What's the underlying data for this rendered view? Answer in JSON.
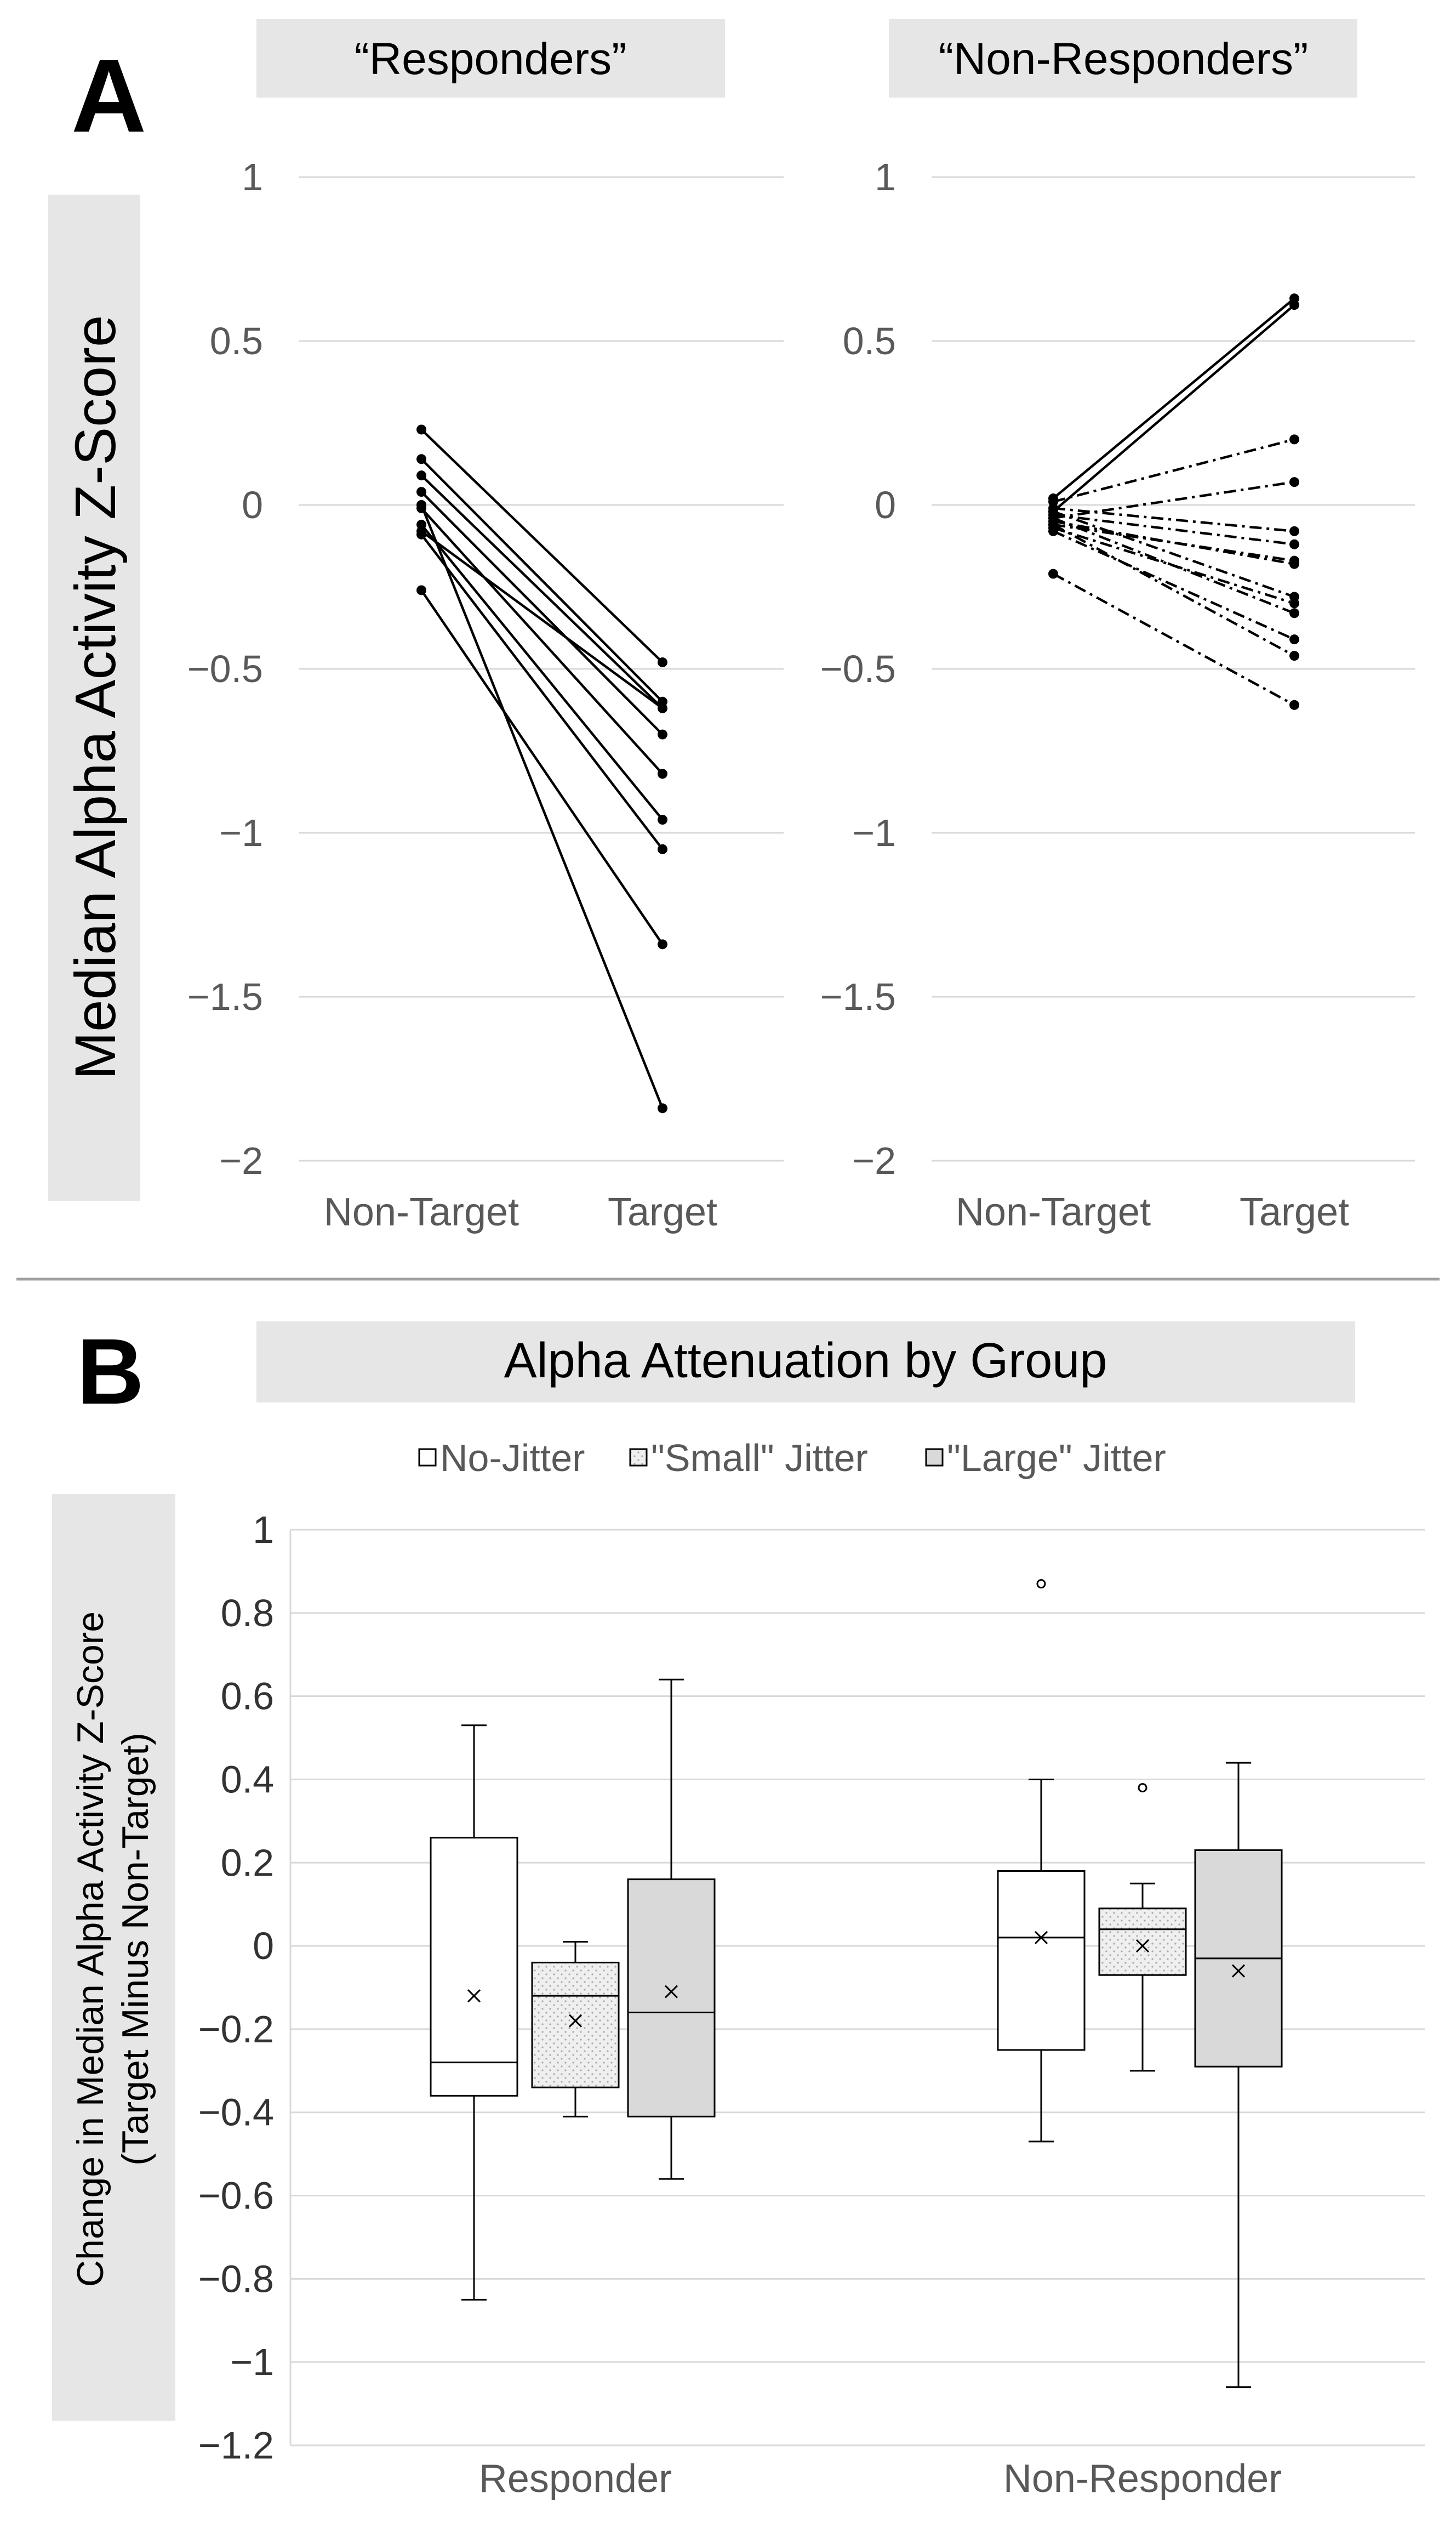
{
  "panels": {
    "a_letter": "A",
    "b_letter": "B"
  },
  "chart_data": [
    {
      "type": "line",
      "panel": "A",
      "title": "“Responders”",
      "ylabel": "Median Alpha Activity Z-Score",
      "categories": [
        "Non-Target",
        "Target"
      ],
      "y_ticks": [
        "1",
        "0.5",
        "0",
        "−0.5",
        "−1",
        "−1.5",
        "−2"
      ],
      "ylim": [
        -2,
        1
      ],
      "grid": true,
      "line_style": "solid",
      "series": [
        {
          "values": [
            0.23,
            -0.48
          ]
        },
        {
          "values": [
            0.14,
            -0.6
          ]
        },
        {
          "values": [
            0.09,
            -0.62
          ]
        },
        {
          "values": [
            0.04,
            -0.7
          ]
        },
        {
          "values": [
            0.0,
            -1.84
          ]
        },
        {
          "values": [
            -0.01,
            -0.82
          ]
        },
        {
          "values": [
            -0.06,
            -0.96
          ]
        },
        {
          "values": [
            -0.08,
            -0.62
          ]
        },
        {
          "values": [
            -0.09,
            -1.05
          ]
        },
        {
          "values": [
            -0.26,
            -1.34
          ]
        }
      ]
    },
    {
      "type": "line",
      "panel": "A",
      "title": "“Non-Responders”",
      "categories": [
        "Non-Target",
        "Target"
      ],
      "y_ticks": [
        "1",
        "0.5",
        "0",
        "−0.5",
        "−1",
        "−1.5",
        "−2"
      ],
      "ylim": [
        -2,
        1
      ],
      "grid": true,
      "series": [
        {
          "values": [
            0.02,
            0.63
          ],
          "style": "solid"
        },
        {
          "values": [
            -0.02,
            0.61
          ],
          "style": "solid"
        },
        {
          "values": [
            0.01,
            0.2
          ],
          "style": "dashdot"
        },
        {
          "values": [
            -0.04,
            0.07
          ],
          "style": "dashdot"
        },
        {
          "values": [
            -0.01,
            -0.08
          ],
          "style": "dashdot"
        },
        {
          "values": [
            -0.03,
            -0.12
          ],
          "style": "dashdot"
        },
        {
          "values": [
            -0.06,
            -0.17
          ],
          "style": "dashdot"
        },
        {
          "values": [
            -0.05,
            -0.18
          ],
          "style": "dashdot"
        },
        {
          "values": [
            -0.02,
            -0.28
          ],
          "style": "dashdot"
        },
        {
          "values": [
            -0.07,
            -0.3
          ],
          "style": "dashdot"
        },
        {
          "values": [
            -0.04,
            -0.33
          ],
          "style": "dashdot"
        },
        {
          "values": [
            -0.08,
            -0.41
          ],
          "style": "dashdot"
        },
        {
          "values": [
            -0.06,
            -0.46
          ],
          "style": "dashdot"
        },
        {
          "values": [
            -0.21,
            -0.61
          ],
          "style": "dashdot"
        }
      ]
    },
    {
      "type": "box",
      "panel": "B",
      "title": "Alpha Attenuation by Group",
      "ylabel": [
        "Change in Median Alpha Activity Z-Score",
        "(Target Minus Non-Target)"
      ],
      "categories": [
        "Responder",
        "Non-Responder"
      ],
      "y_ticks": [
        "1",
        "0.8",
        "0.6",
        "0.4",
        "0.2",
        "0",
        "−0.2",
        "−0.4",
        "−0.6",
        "−0.8",
        "−1",
        "−1.2"
      ],
      "ylim": [
        -1.2,
        1
      ],
      "grid": true,
      "legend_position": "top",
      "series": [
        {
          "name": "No-Jitter",
          "color": "#ffffff",
          "pattern": "none",
          "boxes": [
            {
              "min": -0.85,
              "q1": -0.36,
              "median": -0.28,
              "q3": 0.26,
              "max": 0.53,
              "mean": -0.12,
              "outliers": []
            },
            {
              "min": -0.47,
              "q1": -0.25,
              "median": 0.02,
              "q3": 0.18,
              "max": 0.4,
              "mean": 0.02,
              "outliers": [
                0.87
              ]
            }
          ]
        },
        {
          "name": "\"Small\" Jitter",
          "color": "#eeeeee",
          "pattern": "dots",
          "boxes": [
            {
              "min": -0.41,
              "q1": -0.34,
              "median": -0.12,
              "q3": -0.04,
              "max": 0.01,
              "mean": -0.18,
              "outliers": []
            },
            {
              "min": -0.3,
              "q1": -0.07,
              "median": 0.04,
              "q3": 0.09,
              "max": 0.15,
              "mean": 0.0,
              "outliers": [
                0.38
              ]
            }
          ]
        },
        {
          "name": "\"Large\" Jitter",
          "color": "#d9d9d9",
          "pattern": "none",
          "boxes": [
            {
              "min": -0.56,
              "q1": -0.41,
              "median": -0.16,
              "q3": 0.16,
              "max": 0.64,
              "mean": -0.11,
              "outliers": []
            },
            {
              "min": -1.06,
              "q1": -0.29,
              "median": -0.03,
              "q3": 0.23,
              "max": 0.44,
              "mean": -0.06,
              "outliers": []
            }
          ]
        }
      ]
    }
  ]
}
